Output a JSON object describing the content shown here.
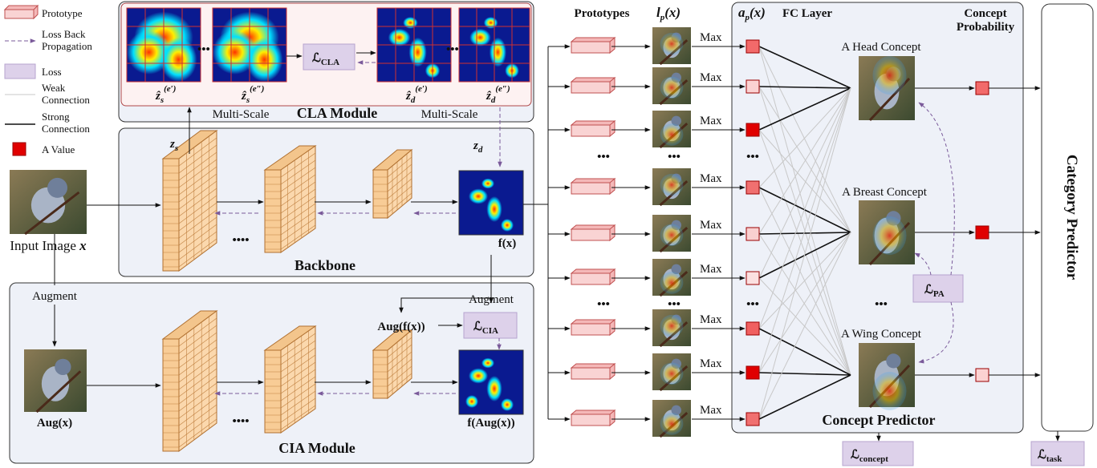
{
  "legend": {
    "prototype": "Prototype",
    "loss_back_propagation": [
      "Loss Back",
      "Propagation"
    ],
    "loss": "Loss",
    "weak_connection": [
      "Weak",
      "Connection"
    ],
    "strong_connection": [
      "Strong",
      "Connection"
    ],
    "a_value": "A Value"
  },
  "cla_module": {
    "title": "CLA Module",
    "multi_scale": [
      "Multi-Scale",
      "Multi-Scale"
    ],
    "loss": {
      "symbol": "ℒ",
      "subscript": "CLA"
    },
    "ellipsis": [
      "•••",
      "•••"
    ],
    "maps": [
      {
        "symbol": "ẑ",
        "subscript": "s",
        "superscript": "(e′)"
      },
      {
        "symbol": "ẑ",
        "subscript": "s",
        "superscript": "(e″)"
      },
      {
        "symbol": "ẑ",
        "subscript": "d",
        "superscript": "(e′)"
      },
      {
        "symbol": "ẑ",
        "subscript": "d",
        "superscript": "(e″)"
      }
    ]
  },
  "backbone": {
    "title": "Backbone",
    "input_image": {
      "text": "Input Image",
      "symbol": "x"
    },
    "z_s": {
      "symbol": "z",
      "subscript": "s"
    },
    "z_d": {
      "symbol": "z",
      "subscript": "d"
    },
    "feature": "f(x)",
    "ellipsis": "••••"
  },
  "cia_module": {
    "title": "CIA Module",
    "augment": [
      "Augment",
      "Augment"
    ],
    "aug_image": "Aug(x)",
    "aug_feature": "Aug(f(x))",
    "aug_output": "f(Aug(x))",
    "loss": {
      "symbol": "ℒ",
      "subscript": "CIA"
    },
    "ellipsis": "••••"
  },
  "prototype_section": {
    "prototypes": "Prototypes",
    "activation": {
      "symbol": "l",
      "subscript": "p",
      "argument": "(x)"
    },
    "max_labels": [
      "Max",
      "Max",
      "Max",
      "Max",
      "Max",
      "Max",
      "Max",
      "Max",
      "Max"
    ],
    "ellipses": [
      "•••",
      "•••",
      "•••",
      "•••",
      "•••",
      "•••"
    ]
  },
  "fc_layer": {
    "value": {
      "symbol": "a",
      "subscript": "p",
      "argument": "(x)"
    },
    "title": "FC Layer",
    "concept_probability": [
      "Concept",
      "Probability"
    ],
    "concepts": [
      "A Head Concept",
      "A Breast Concept",
      "A Wing Concept"
    ],
    "ellipsis": "•••",
    "concept_predictor": "Concept Predictor",
    "pa_loss": {
      "symbol": "ℒ",
      "subscript": "PA"
    },
    "concept_loss": {
      "symbol": "ℒ",
      "subscript": "concept"
    }
  },
  "category_predictor": {
    "title": "Category Predictor",
    "task_loss": {
      "symbol": "ℒ",
      "subscript": "task"
    }
  }
}
